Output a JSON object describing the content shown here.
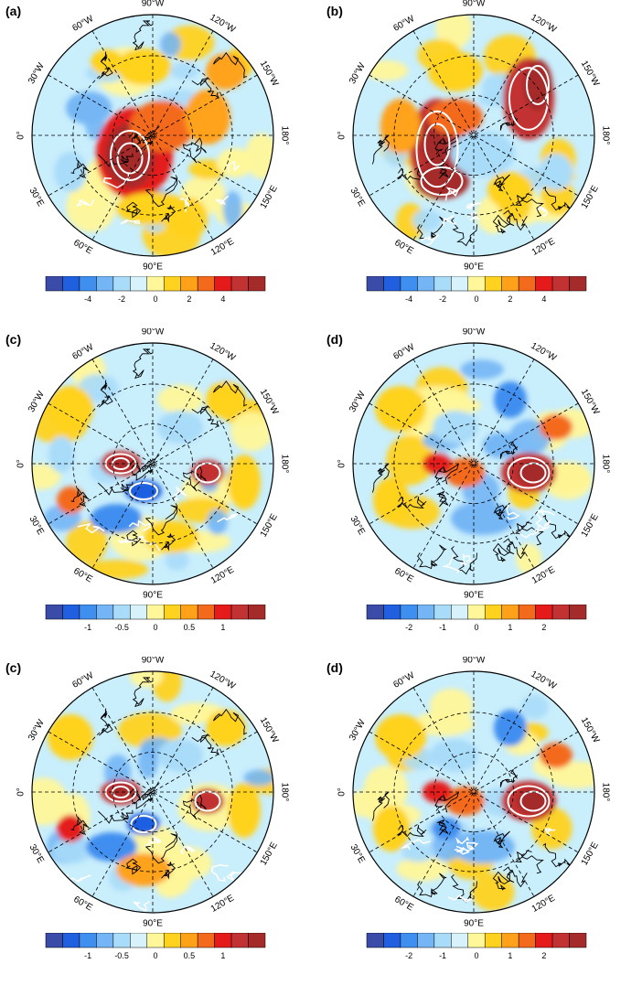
{
  "figure": {
    "panels": [
      {
        "letter": "(a)",
        "ticks": [
          "-4",
          "-2",
          "0",
          "2",
          "4"
        ]
      },
      {
        "letter": "(b)",
        "ticks": [
          "-4",
          "-2",
          "0",
          "2",
          "4"
        ]
      },
      {
        "letter": "(c)",
        "ticks": [
          "-1",
          "-0.5",
          "0",
          "0.5",
          "1"
        ]
      },
      {
        "letter": "(d)",
        "ticks": [
          "-2",
          "-1",
          "0",
          "1",
          "2"
        ]
      },
      {
        "letter": "(c)",
        "ticks": [
          "-1",
          "-0.5",
          "0",
          "0.5",
          "1"
        ]
      },
      {
        "letter": "(d)",
        "ticks": [
          "-2",
          "-1",
          "0",
          "1",
          "2"
        ]
      }
    ],
    "longitude_labels": {
      "lon_90W": "90°W",
      "lon_60W": "60°W",
      "lon_120W": "120°W",
      "lon_30W": "30°W",
      "lon_150W": "150°W",
      "lon_0": "0°",
      "lon_180": "180°",
      "lon_30E": "30°E",
      "lon_150E": "150°E",
      "lon_60E": "60°E",
      "lon_120E": "120°E",
      "lon_90E": "90°E"
    },
    "colorbar_colors": [
      "#3b4ba8",
      "#1f5fe0",
      "#3f8ff0",
      "#74b6f5",
      "#a9dcf9",
      "#d7f2fb",
      "#fff79a",
      "#ffd21f",
      "#ffa21a",
      "#f46a1c",
      "#e51b1b",
      "#c23232",
      "#a52a2a"
    ],
    "contour_color": "#ffffff",
    "background_color": "#c9eefc"
  }
}
